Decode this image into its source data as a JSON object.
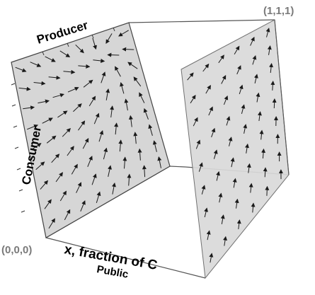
{
  "labels": {
    "producer": "Producer",
    "consumer": "Consumer",
    "x_axis": "x, fraction of C",
    "public": "Public",
    "origin": "(0,0,0)",
    "corner": "(1,1,1)"
  },
  "colors": {
    "panel_fill": "#d6d6d6",
    "arrow": "#1a1a1a",
    "edge": "#555555",
    "corner_label": "#7a7a7a"
  },
  "vector_fields": {
    "left_face": "flow converging toward the right edge (Producer-Public corner side)",
    "right_face": "flow converging toward the top corner (1,1,1)"
  }
}
